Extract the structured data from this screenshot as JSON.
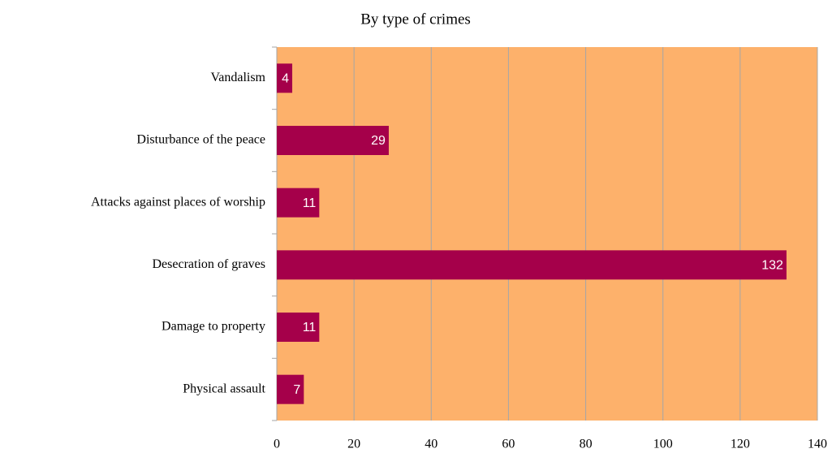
{
  "chart_data": {
    "type": "bar",
    "orientation": "horizontal",
    "title": "By type of crimes",
    "categories": [
      "Vandalism",
      "Disturbance of the peace",
      "Attacks against places of worship",
      "Desecration of graves",
      "Damage to property",
      "Physical assault"
    ],
    "values": [
      4,
      29,
      11,
      132,
      11,
      7
    ],
    "color": "#a5004a",
    "background": "#fdb16b",
    "xlim": [
      0,
      140
    ],
    "xticks": [
      0,
      20,
      40,
      60,
      80,
      100,
      120,
      140
    ],
    "grid": true
  }
}
